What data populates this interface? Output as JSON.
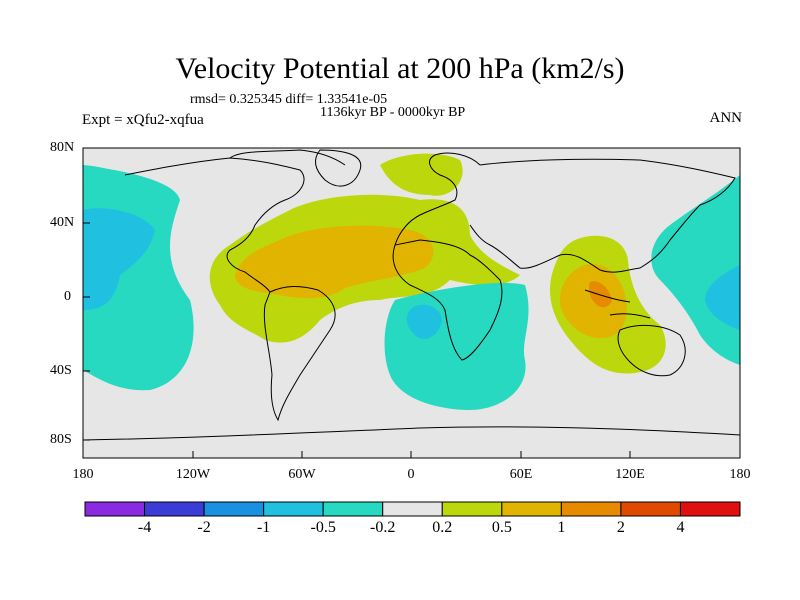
{
  "title": "Velocity Potential at 200 hPa (km2/s)",
  "stats": "rmsd= 0.325345 diff= 1.33541e-05",
  "period": "1136kyr BP - 0000kyr BP",
  "experiment": "Expt = xQfu2-xqfua",
  "season": "ANN",
  "axes": {
    "lat_labels": [
      "80N",
      "40N",
      "0",
      "40S",
      "80S"
    ],
    "lon_labels": [
      "180",
      "120W",
      "60W",
      "0",
      "60E",
      "120E",
      "180"
    ]
  },
  "colorbar": {
    "labels": [
      "-4",
      "-2",
      "-1",
      "-0.5",
      "-0.2",
      "0.2",
      "0.5",
      "1",
      "2",
      "4"
    ],
    "colors": [
      "#8a2be2",
      "#3b3bd8",
      "#1a90e0",
      "#1fc0e0",
      "#26d9c0",
      "#e6e6e6",
      "#bcd80c",
      "#e0b400",
      "#e68a00",
      "#e04a00",
      "#e01010"
    ]
  },
  "fills": {
    "ocean_land": "#e6e6e6",
    "neg_low": "#26d9c0",
    "neg_mid": "#1fc0e0",
    "pos_low": "#bcd80c",
    "pos_mid": "#e0b400",
    "pos_high": "#e68a00"
  }
}
